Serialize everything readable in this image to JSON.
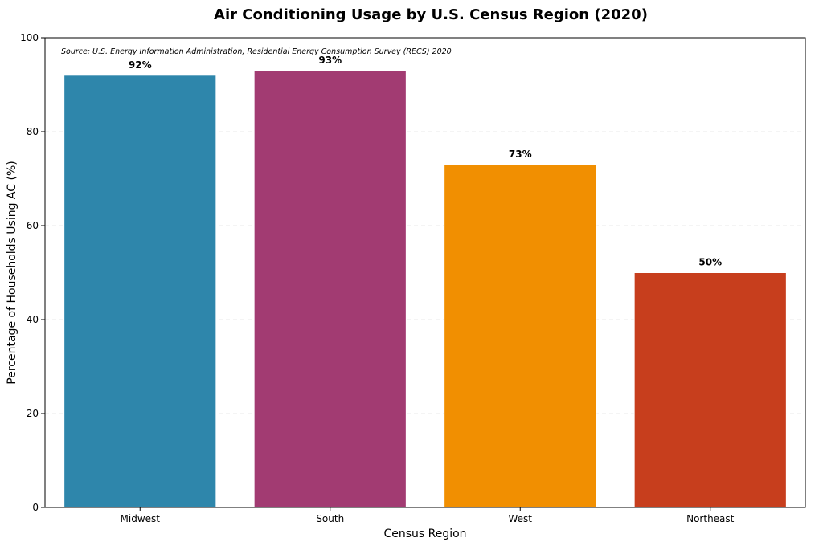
{
  "chart_data": {
    "type": "bar",
    "title": "Air Conditioning Usage by U.S. Census Region (2020)",
    "source_note": "Source: U.S. Energy Information Administration, Residential Energy Consumption Survey (RECS) 2020",
    "xlabel": "Census Region",
    "ylabel": "Percentage of Households Using AC (%)",
    "ylim": [
      0,
      100
    ],
    "yticks": [
      0,
      20,
      40,
      60,
      80,
      100
    ],
    "grid": true,
    "categories": [
      "Midwest",
      "South",
      "West",
      "Northeast"
    ],
    "values": [
      92,
      93,
      73,
      50
    ],
    "value_labels": [
      "92%",
      "93%",
      "73%",
      "50%"
    ],
    "colors": [
      "#2e86ab",
      "#a23b72",
      "#f18f01",
      "#c73e1d"
    ]
  }
}
